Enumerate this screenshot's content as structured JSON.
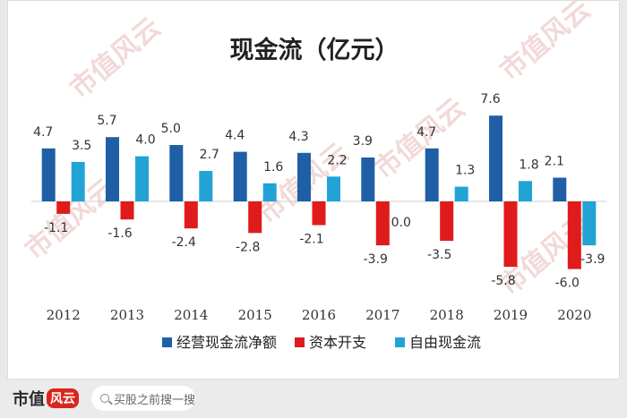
{
  "watermark": "市值风云",
  "footer": {
    "brand_text": "市值",
    "brand_mark": "风云",
    "search_placeholder": "买股之前搜一搜"
  },
  "chart_data": {
    "type": "bar",
    "title": "现金流（亿元）",
    "categories": [
      "2012",
      "2013",
      "2014",
      "2015",
      "2016",
      "2017",
      "2018",
      "2019",
      "2020"
    ],
    "series": [
      {
        "name": "经营现金流净额",
        "color": "#1f5fa6",
        "values": [
          4.7,
          5.7,
          5.0,
          4.4,
          4.3,
          3.9,
          4.7,
          7.6,
          2.1
        ]
      },
      {
        "name": "资本开支",
        "color": "#e01b1b",
        "values": [
          -1.1,
          -1.6,
          -2.4,
          -2.8,
          -2.1,
          -3.9,
          -3.5,
          -5.8,
          -6.0
        ]
      },
      {
        "name": "自由现金流",
        "color": "#22a3d6",
        "values": [
          3.5,
          4.0,
          2.7,
          1.6,
          2.2,
          0.0,
          1.3,
          1.8,
          -3.9
        ]
      }
    ],
    "labels": [
      [
        "4.7",
        "5.7",
        "5.0",
        "4.4",
        "4.3",
        "3.9",
        "4.7",
        "7.6",
        "2.1"
      ],
      [
        "-1.1",
        "-1.6",
        "-2.4",
        "-2.8",
        "-2.1",
        "-3.9",
        "-3.5",
        "-5.8",
        "-6.0"
      ],
      [
        "3.5",
        "4.0",
        "2.7",
        "1.6",
        "2.2",
        "0.0",
        "1.3",
        "1.8",
        "-3.9"
      ]
    ],
    "xlabel": "",
    "ylabel": "",
    "ylim": [
      -6.5,
      8.5
    ],
    "legend_position": "bottom"
  }
}
